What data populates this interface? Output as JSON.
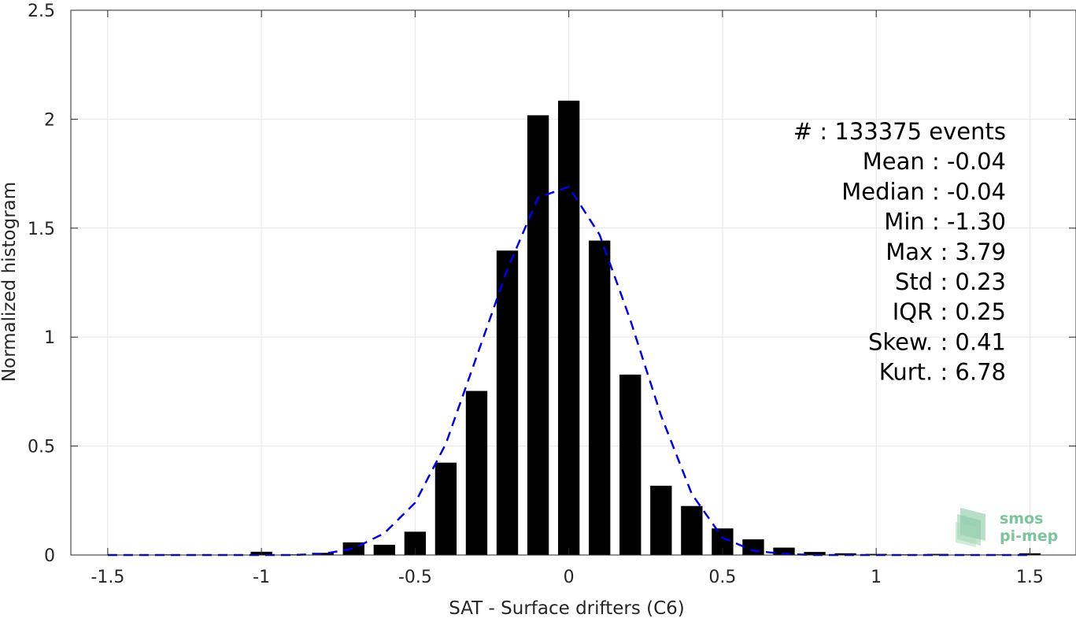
{
  "chart_data": {
    "type": "bar",
    "xlabel": "SAT - Surface drifters (C6)",
    "ylabel": "Normalized histogram",
    "xlim": [
      -1.62,
      1.65
    ],
    "ylim": [
      0,
      2.5
    ],
    "grid": true,
    "xticks": [
      -1.5,
      -1,
      -0.5,
      0,
      0.5,
      1,
      1.5
    ],
    "xtick_labels": [
      "-1.5",
      "-1",
      "-0.5",
      "0",
      "0.5",
      "1",
      "1.5"
    ],
    "yticks": [
      0,
      0.5,
      1,
      1.5,
      2,
      2.5
    ],
    "ytick_labels": [
      "0",
      "0.5",
      "1",
      "1.5",
      "2",
      "2.5"
    ],
    "bar_width": 0.07,
    "bar_color": "#000000",
    "bars": {
      "x": [
        -1.3,
        -1.2,
        -1.1,
        -1.0,
        -0.9,
        -0.8,
        -0.7,
        -0.6,
        -0.5,
        -0.4,
        -0.3,
        -0.2,
        -0.1,
        0.0,
        0.1,
        0.2,
        0.3,
        0.4,
        0.5,
        0.6,
        0.7,
        0.8,
        0.9,
        1.0,
        1.1,
        1.2,
        1.3,
        1.4,
        1.5
      ],
      "values": [
        0.003,
        0.002,
        0.002,
        0.015,
        0.003,
        0.01,
        0.058,
        0.047,
        0.107,
        0.424,
        0.753,
        1.397,
        2.018,
        2.085,
        1.443,
        0.828,
        0.318,
        0.225,
        0.122,
        0.072,
        0.034,
        0.014,
        0.008,
        0.005,
        0.003,
        0.005,
        0.003,
        0.003,
        0.008
      ]
    },
    "fit_curve": {
      "color": "#0000ee",
      "style": "dashed",
      "x": [
        -1.5,
        -1.4,
        -1.3,
        -1.2,
        -1.1,
        -1.0,
        -0.9,
        -0.8,
        -0.7,
        -0.6,
        -0.5,
        -0.4,
        -0.3,
        -0.2,
        -0.1,
        0.0,
        0.1,
        0.2,
        0.3,
        0.4,
        0.5,
        0.6,
        0.7,
        0.8,
        0.9,
        1.0,
        1.1,
        1.2,
        1.3,
        1.4,
        1.5
      ],
      "values": [
        0.0,
        0.0,
        0.0,
        0.0,
        0.0,
        0.0,
        0.0,
        0.005,
        0.03,
        0.1,
        0.24,
        0.51,
        0.91,
        1.31,
        1.64,
        1.69,
        1.47,
        1.08,
        0.64,
        0.28,
        0.08,
        0.02,
        0.005,
        0.0,
        0.0,
        0.0,
        0.0,
        0.0,
        0.0,
        0.0,
        0.0
      ]
    },
    "stats": [
      {
        "label": "#  : 133375 events"
      },
      {
        "label": "Mean : -0.04"
      },
      {
        "label": "Median : -0.04"
      },
      {
        "label": "Min : -1.30"
      },
      {
        "label": "Max : 3.79"
      },
      {
        "label": "Std : 0.23"
      },
      {
        "label": "IQR : 0.25"
      },
      {
        "label": "Skew. : 0.41"
      },
      {
        "label": "Kurt. : 6.78"
      }
    ]
  },
  "logo": {
    "line1": "smos",
    "line2": "pi-mep",
    "color": "#7cc49a"
  }
}
